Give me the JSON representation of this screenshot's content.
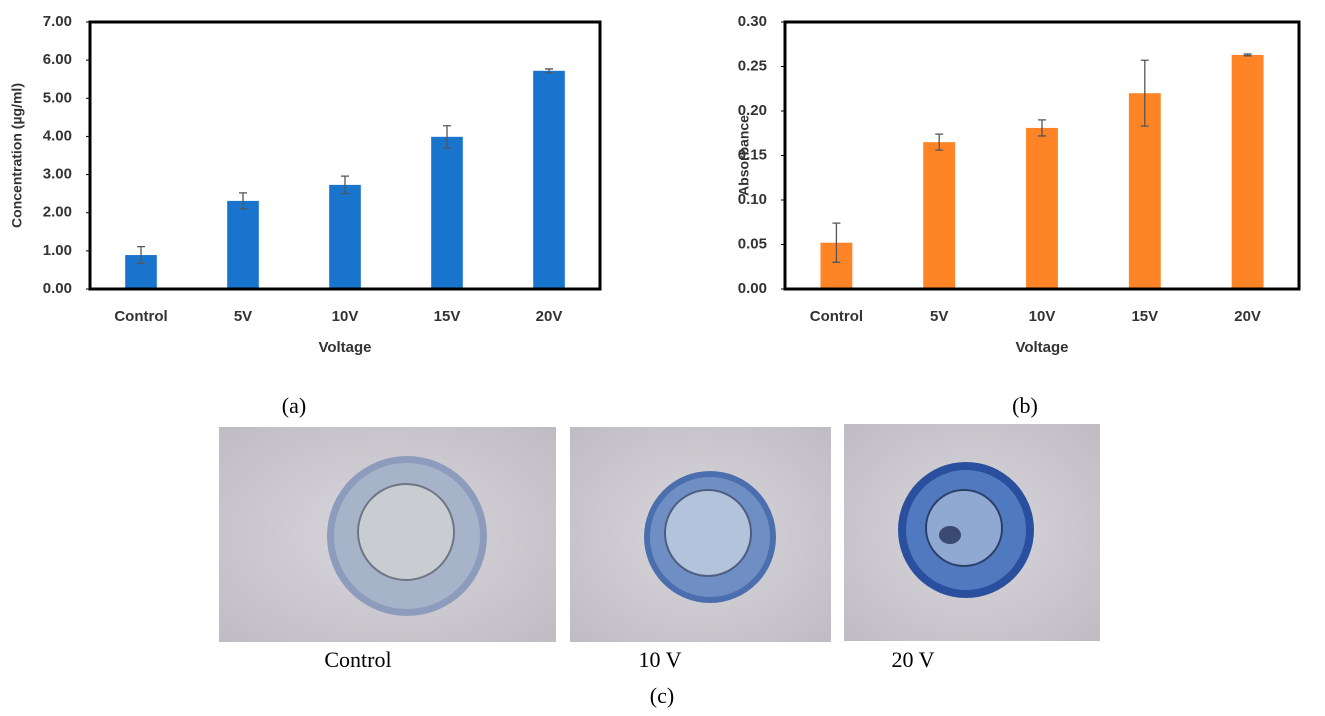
{
  "chart_data": [
    {
      "type": "bar",
      "y_label": "Concentration (µg/ml)",
      "x_label": "Voltage",
      "categories": [
        "Control",
        "5V",
        "10V",
        "15V",
        "20V"
      ],
      "values": [
        0.89,
        2.31,
        2.73,
        3.99,
        5.72
      ],
      "errors": [
        0.22,
        0.21,
        0.23,
        0.29,
        0.05
      ],
      "color": "#1874cd",
      "ylim": [
        0,
        7
      ],
      "yticks": [
        {
          "value": 0,
          "label": "0.00"
        },
        {
          "value": 1,
          "label": "1.00"
        },
        {
          "value": 2,
          "label": "2.00"
        },
        {
          "value": 3,
          "label": "3.00"
        },
        {
          "value": 4,
          "label": "4.00"
        },
        {
          "value": 5,
          "label": "5.00"
        },
        {
          "value": 6,
          "label": "6.00"
        },
        {
          "value": 7,
          "label": "7.00"
        }
      ]
    },
    {
      "type": "bar",
      "y_label": "Absorbance",
      "x_label": "Voltage",
      "categories": [
        "Control",
        "5V",
        "10V",
        "15V",
        "20V"
      ],
      "values": [
        0.052,
        0.165,
        0.181,
        0.22,
        0.263
      ],
      "errors": [
        0.022,
        0.009,
        0.009,
        0.037,
        0.001
      ],
      "color": "#ff8426",
      "ylim": [
        0,
        0.3
      ],
      "yticks": [
        {
          "value": 0,
          "label": "0.00"
        },
        {
          "value": 0.05,
          "label": "0.05"
        },
        {
          "value": 0.1,
          "label": "0.10"
        },
        {
          "value": 0.15,
          "label": "0.15"
        },
        {
          "value": 0.2,
          "label": "0.20"
        },
        {
          "value": 0.25,
          "label": "0.25"
        },
        {
          "value": 0.3,
          "label": "0.30"
        }
      ]
    }
  ],
  "panel_labels": [
    "(a)",
    "(b)",
    "(c)"
  ],
  "photo_captions": [
    "Control",
    "10 V",
    "20 V"
  ]
}
